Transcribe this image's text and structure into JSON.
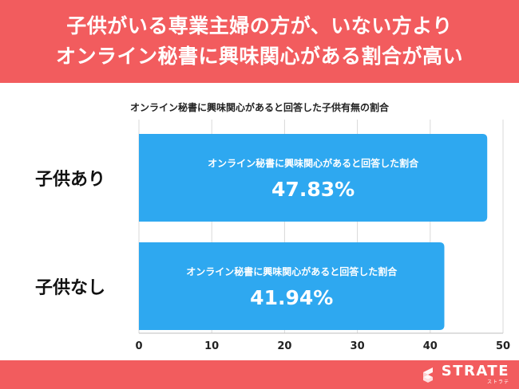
{
  "header": {
    "line1": "子供がいる専業主婦の方が、いない方より",
    "line2": "オンライン秘書に興味関心がある割合が高い"
  },
  "brand": {
    "name": "STRATE",
    "sub": "ストラテ"
  },
  "colors": {
    "header": "#f25c5e",
    "bar": "#2ea8f0",
    "grid": "#d9d9d9"
  },
  "chart_data": {
    "type": "bar",
    "orientation": "horizontal",
    "title": "オンライン秘書に興味関心があると回答した子供有無の割合",
    "categories": [
      "子供あり",
      "子供なし"
    ],
    "series": [
      {
        "values": [
          47.83,
          41.94
        ]
      }
    ],
    "bar_labels": [
      "オンライン秘書に興味関心があると回答した割合",
      "オンライン秘書に興味関心があると回答した割合"
    ],
    "value_labels": [
      "47.83%",
      "41.94%"
    ],
    "xlim": [
      0,
      50
    ],
    "xticks": [
      0,
      10,
      20,
      30,
      40,
      50
    ],
    "grid": true,
    "legend": "none"
  }
}
